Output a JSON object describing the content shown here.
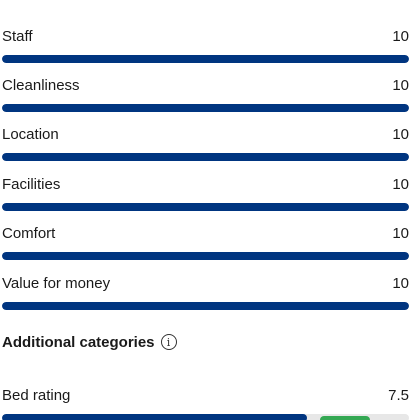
{
  "ratings": [
    {
      "label": "Staff",
      "value": "10",
      "fraction": 1.0
    },
    {
      "label": "Cleanliness",
      "value": "10",
      "fraction": 1.0
    },
    {
      "label": "Location",
      "value": "10",
      "fraction": 1.0
    },
    {
      "label": "Facilities",
      "value": "10",
      "fraction": 1.0
    },
    {
      "label": "Comfort",
      "value": "10",
      "fraction": 1.0
    },
    {
      "label": "Value for money",
      "value": "10",
      "fraction": 1.0
    }
  ],
  "additional": {
    "title": "Additional categories",
    "info_icon": "info-icon",
    "items": [
      {
        "label": "Bed rating",
        "value": "7.5",
        "fraction": 0.75
      }
    ]
  },
  "colors": {
    "bar_fill": "#003580",
    "bar_track": "#e7e7e7"
  }
}
